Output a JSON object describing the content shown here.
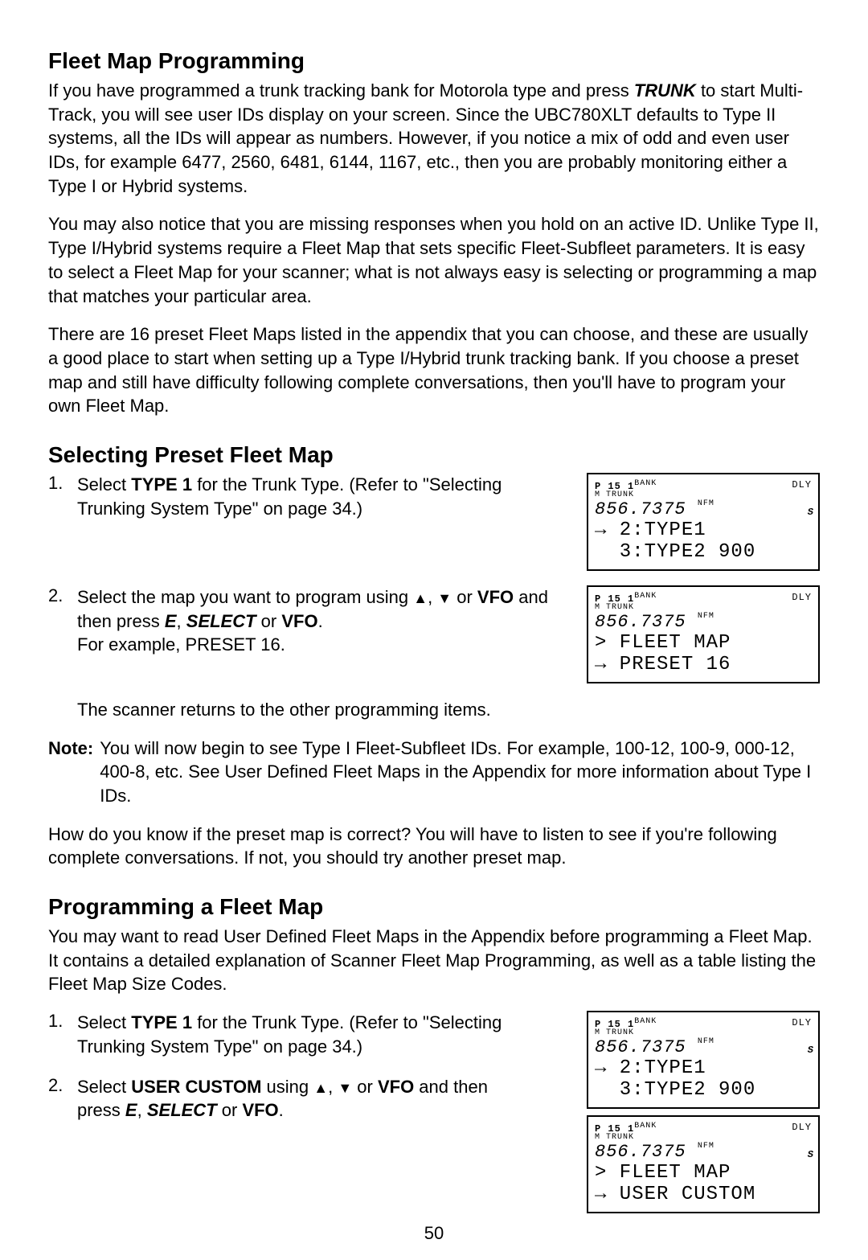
{
  "page_number": "50",
  "h1": "Fleet Map Programming",
  "p1": "If you have programmed a trunk tracking bank for Motorola type and press <span class='bi'>TRUNK</span> to start Multi-Track, you will see user IDs display on your screen. Since the UBC780XLT defaults to Type II systems, all the IDs will appear as numbers. However, if you notice a mix of odd and even user IDs, for example 6477, 2560, 6481, 6144, 1167, etc., then you are probably monitoring either a Type I or Hybrid systems.",
  "p2": "You may also notice that you are missing responses when you hold on an active ID. Unlike Type II, Type I/Hybrid systems require a Fleet Map that sets specific Fleet-Subfleet parameters. It is easy to select a Fleet Map for your scanner; what is not always easy is selecting or programming a map that matches your particular area.",
  "p3": "There are 16 preset Fleet Maps listed in the appendix that you can choose, and these are usually a good place to start when setting up a Type I/Hybrid trunk tracking bank. If you choose a preset map and still have difficulty following complete conversations, then you'll have to program your own Fleet Map.",
  "h2": "Selecting Preset Fleet Map",
  "s1_n": "1.",
  "s1": "Select <span class='b'>TYPE 1</span> for the Trunk Type. (Refer to \"Selecting Trunking System Type\" on page 34.)",
  "s2_n": "2.",
  "s2": "Select the map you want to program using <span class='tri'>▲</span>, <span class='tri'>▼</span> or <span class='b'>VFO</span> and then press <span class='bi'>E</span>, <span class='bi'>SELECT</span> or <span class='b'>VFO</span>.<br>For example, PRESET 16.",
  "s_after": "The scanner returns to the other programming items.",
  "note_label": "Note:",
  "note": "You will now begin to see Type I Fleet-Subfleet IDs. For example, 100-12, 100-9, 000-12, 400-8, etc. See User Defined Fleet Maps in the Appendix for more information about Type I IDs.",
  "p4": "How do you know if the preset map is correct? You will have to listen to see if you're following complete conversations. If not, you should try another preset map.",
  "h3": "Programming a Fleet Map",
  "p5": "You may want to read User Defined Fleet Maps in the Appendix before programming a Fleet Map. It contains a detailed explanation of Scanner Fleet Map Programming, as well as a table listing the Fleet Map Size Codes.",
  "pf1_n": "1.",
  "pf1": "Select <span class='b'>TYPE 1</span> for the Trunk Type. (Refer to \"Selecting Trunking System Type\" on page 34.)",
  "pf2_n": "2.",
  "pf2": "Select <span class='b'>USER CUSTOM</span> using <span class='tri'>▲</span>, <span class='tri'>▼</span> or <span class='b'>VFO</span> and then press <span class='bi'>E</span>, <span class='bi'>SELECT</span> or <span class='b'>VFO</span>.",
  "lcd1": {
    "top_left": "P  15 1",
    "top_left_sup": "BANK",
    "top_right": "DLY",
    "sub": "M  TRUNK",
    "freq": "856.7375",
    "freq_tag": "NFM",
    "side_s": "S",
    "line1": "→ 2:TYPE1",
    "line2": "  3:TYPE2 900"
  },
  "lcd2": {
    "top_left": "P  15 1",
    "top_left_sup": "BANK",
    "top_right": "DLY",
    "sub": "M  TRUNK",
    "freq": "856.7375",
    "freq_tag": "NFM",
    "side_s": "",
    "line1": "> FLEET MAP",
    "line2": "→ PRESET 16"
  },
  "lcd3": {
    "top_left": "P  15 1",
    "top_left_sup": "BANK",
    "top_right": "DLY",
    "sub": "M  TRUNK",
    "freq": "856.7375",
    "freq_tag": "NFM",
    "side_s": "S",
    "line1": "→ 2:TYPE1",
    "line2": "  3:TYPE2 900"
  },
  "lcd4": {
    "top_left": "P  15 1",
    "top_left_sup": "BANK",
    "top_right": "DLY",
    "sub": "M  TRUNK",
    "freq": "856.7375",
    "freq_tag": "NFM",
    "side_s": "S",
    "line1": "> FLEET MAP",
    "line2": "→ USER CUSTOM"
  }
}
